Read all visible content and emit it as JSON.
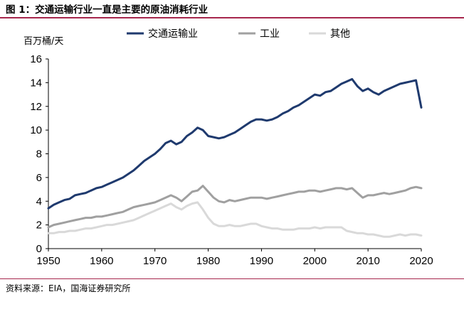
{
  "page": {
    "title": "图 1：交通运输行业一直是主要的原油消耗行业",
    "source": "资料来源：EIA，国海证券研究所",
    "accent_color": "#a6264c"
  },
  "chart_data": {
    "type": "line",
    "title": "",
    "ylabel": "百万桶/天",
    "xlabel": "",
    "xlim": [
      1950,
      2020
    ],
    "ylim": [
      0,
      16
    ],
    "xticks": [
      1950,
      1960,
      1970,
      1980,
      1990,
      2000,
      2010,
      2020
    ],
    "yticks": [
      0,
      2,
      4,
      6,
      8,
      10,
      12,
      14,
      16
    ],
    "grid": false,
    "legend_position": "top",
    "x": [
      1950,
      1951,
      1952,
      1953,
      1954,
      1955,
      1956,
      1957,
      1958,
      1959,
      1960,
      1961,
      1962,
      1963,
      1964,
      1965,
      1966,
      1967,
      1968,
      1969,
      1970,
      1971,
      1972,
      1973,
      1974,
      1975,
      1976,
      1977,
      1978,
      1979,
      1980,
      1981,
      1982,
      1983,
      1984,
      1985,
      1986,
      1987,
      1988,
      1989,
      1990,
      1991,
      1992,
      1993,
      1994,
      1995,
      1996,
      1997,
      1998,
      1999,
      2000,
      2001,
      2002,
      2003,
      2004,
      2005,
      2006,
      2007,
      2008,
      2009,
      2010,
      2011,
      2012,
      2013,
      2014,
      2015,
      2016,
      2017,
      2018,
      2019,
      2020
    ],
    "series": [
      {
        "name": "交通运输业",
        "color": "#1f3a6e",
        "width": 3,
        "values": [
          3.4,
          3.7,
          3.9,
          4.1,
          4.2,
          4.5,
          4.6,
          4.7,
          4.9,
          5.1,
          5.2,
          5.4,
          5.6,
          5.8,
          6.0,
          6.3,
          6.6,
          7.0,
          7.4,
          7.7,
          8.0,
          8.4,
          8.9,
          9.1,
          8.8,
          9.0,
          9.5,
          9.8,
          10.2,
          10.0,
          9.5,
          9.4,
          9.3,
          9.4,
          9.6,
          9.8,
          10.1,
          10.4,
          10.7,
          10.9,
          10.9,
          10.8,
          10.9,
          11.1,
          11.4,
          11.6,
          11.9,
          12.1,
          12.4,
          12.7,
          13.0,
          12.9,
          13.2,
          13.3,
          13.6,
          13.9,
          14.1,
          14.3,
          13.7,
          13.3,
          13.5,
          13.2,
          13.0,
          13.3,
          13.5,
          13.7,
          13.9,
          14.0,
          14.1,
          14.2,
          11.9
        ]
      },
      {
        "name": "工业",
        "color": "#a0a0a0",
        "width": 3,
        "values": [
          1.8,
          2.0,
          2.1,
          2.2,
          2.3,
          2.4,
          2.5,
          2.6,
          2.6,
          2.7,
          2.7,
          2.8,
          2.9,
          3.0,
          3.1,
          3.3,
          3.5,
          3.6,
          3.7,
          3.8,
          3.9,
          4.1,
          4.3,
          4.5,
          4.3,
          4.0,
          4.4,
          4.8,
          4.9,
          5.3,
          4.8,
          4.3,
          4.0,
          3.9,
          4.1,
          4.0,
          4.1,
          4.2,
          4.3,
          4.3,
          4.3,
          4.2,
          4.3,
          4.4,
          4.5,
          4.6,
          4.7,
          4.8,
          4.8,
          4.9,
          4.9,
          4.8,
          4.9,
          5.0,
          5.1,
          5.1,
          5.0,
          5.1,
          4.7,
          4.3,
          4.5,
          4.5,
          4.6,
          4.7,
          4.6,
          4.7,
          4.8,
          4.9,
          5.1,
          5.2,
          5.1
        ]
      },
      {
        "name": "其他",
        "color": "#d9d9d9",
        "width": 3,
        "values": [
          1.3,
          1.3,
          1.4,
          1.4,
          1.5,
          1.5,
          1.6,
          1.7,
          1.7,
          1.8,
          1.9,
          2.0,
          2.0,
          2.1,
          2.2,
          2.3,
          2.4,
          2.6,
          2.8,
          3.0,
          3.2,
          3.4,
          3.6,
          3.8,
          3.5,
          3.3,
          3.6,
          3.8,
          3.9,
          3.3,
          2.6,
          2.1,
          1.9,
          1.9,
          2.0,
          1.9,
          1.9,
          2.0,
          2.1,
          2.1,
          1.9,
          1.8,
          1.7,
          1.7,
          1.6,
          1.6,
          1.6,
          1.7,
          1.7,
          1.7,
          1.8,
          1.7,
          1.8,
          1.8,
          1.8,
          1.8,
          1.5,
          1.4,
          1.3,
          1.3,
          1.2,
          1.2,
          1.1,
          1.0,
          1.0,
          1.1,
          1.2,
          1.1,
          1.2,
          1.2,
          1.1
        ]
      }
    ]
  }
}
